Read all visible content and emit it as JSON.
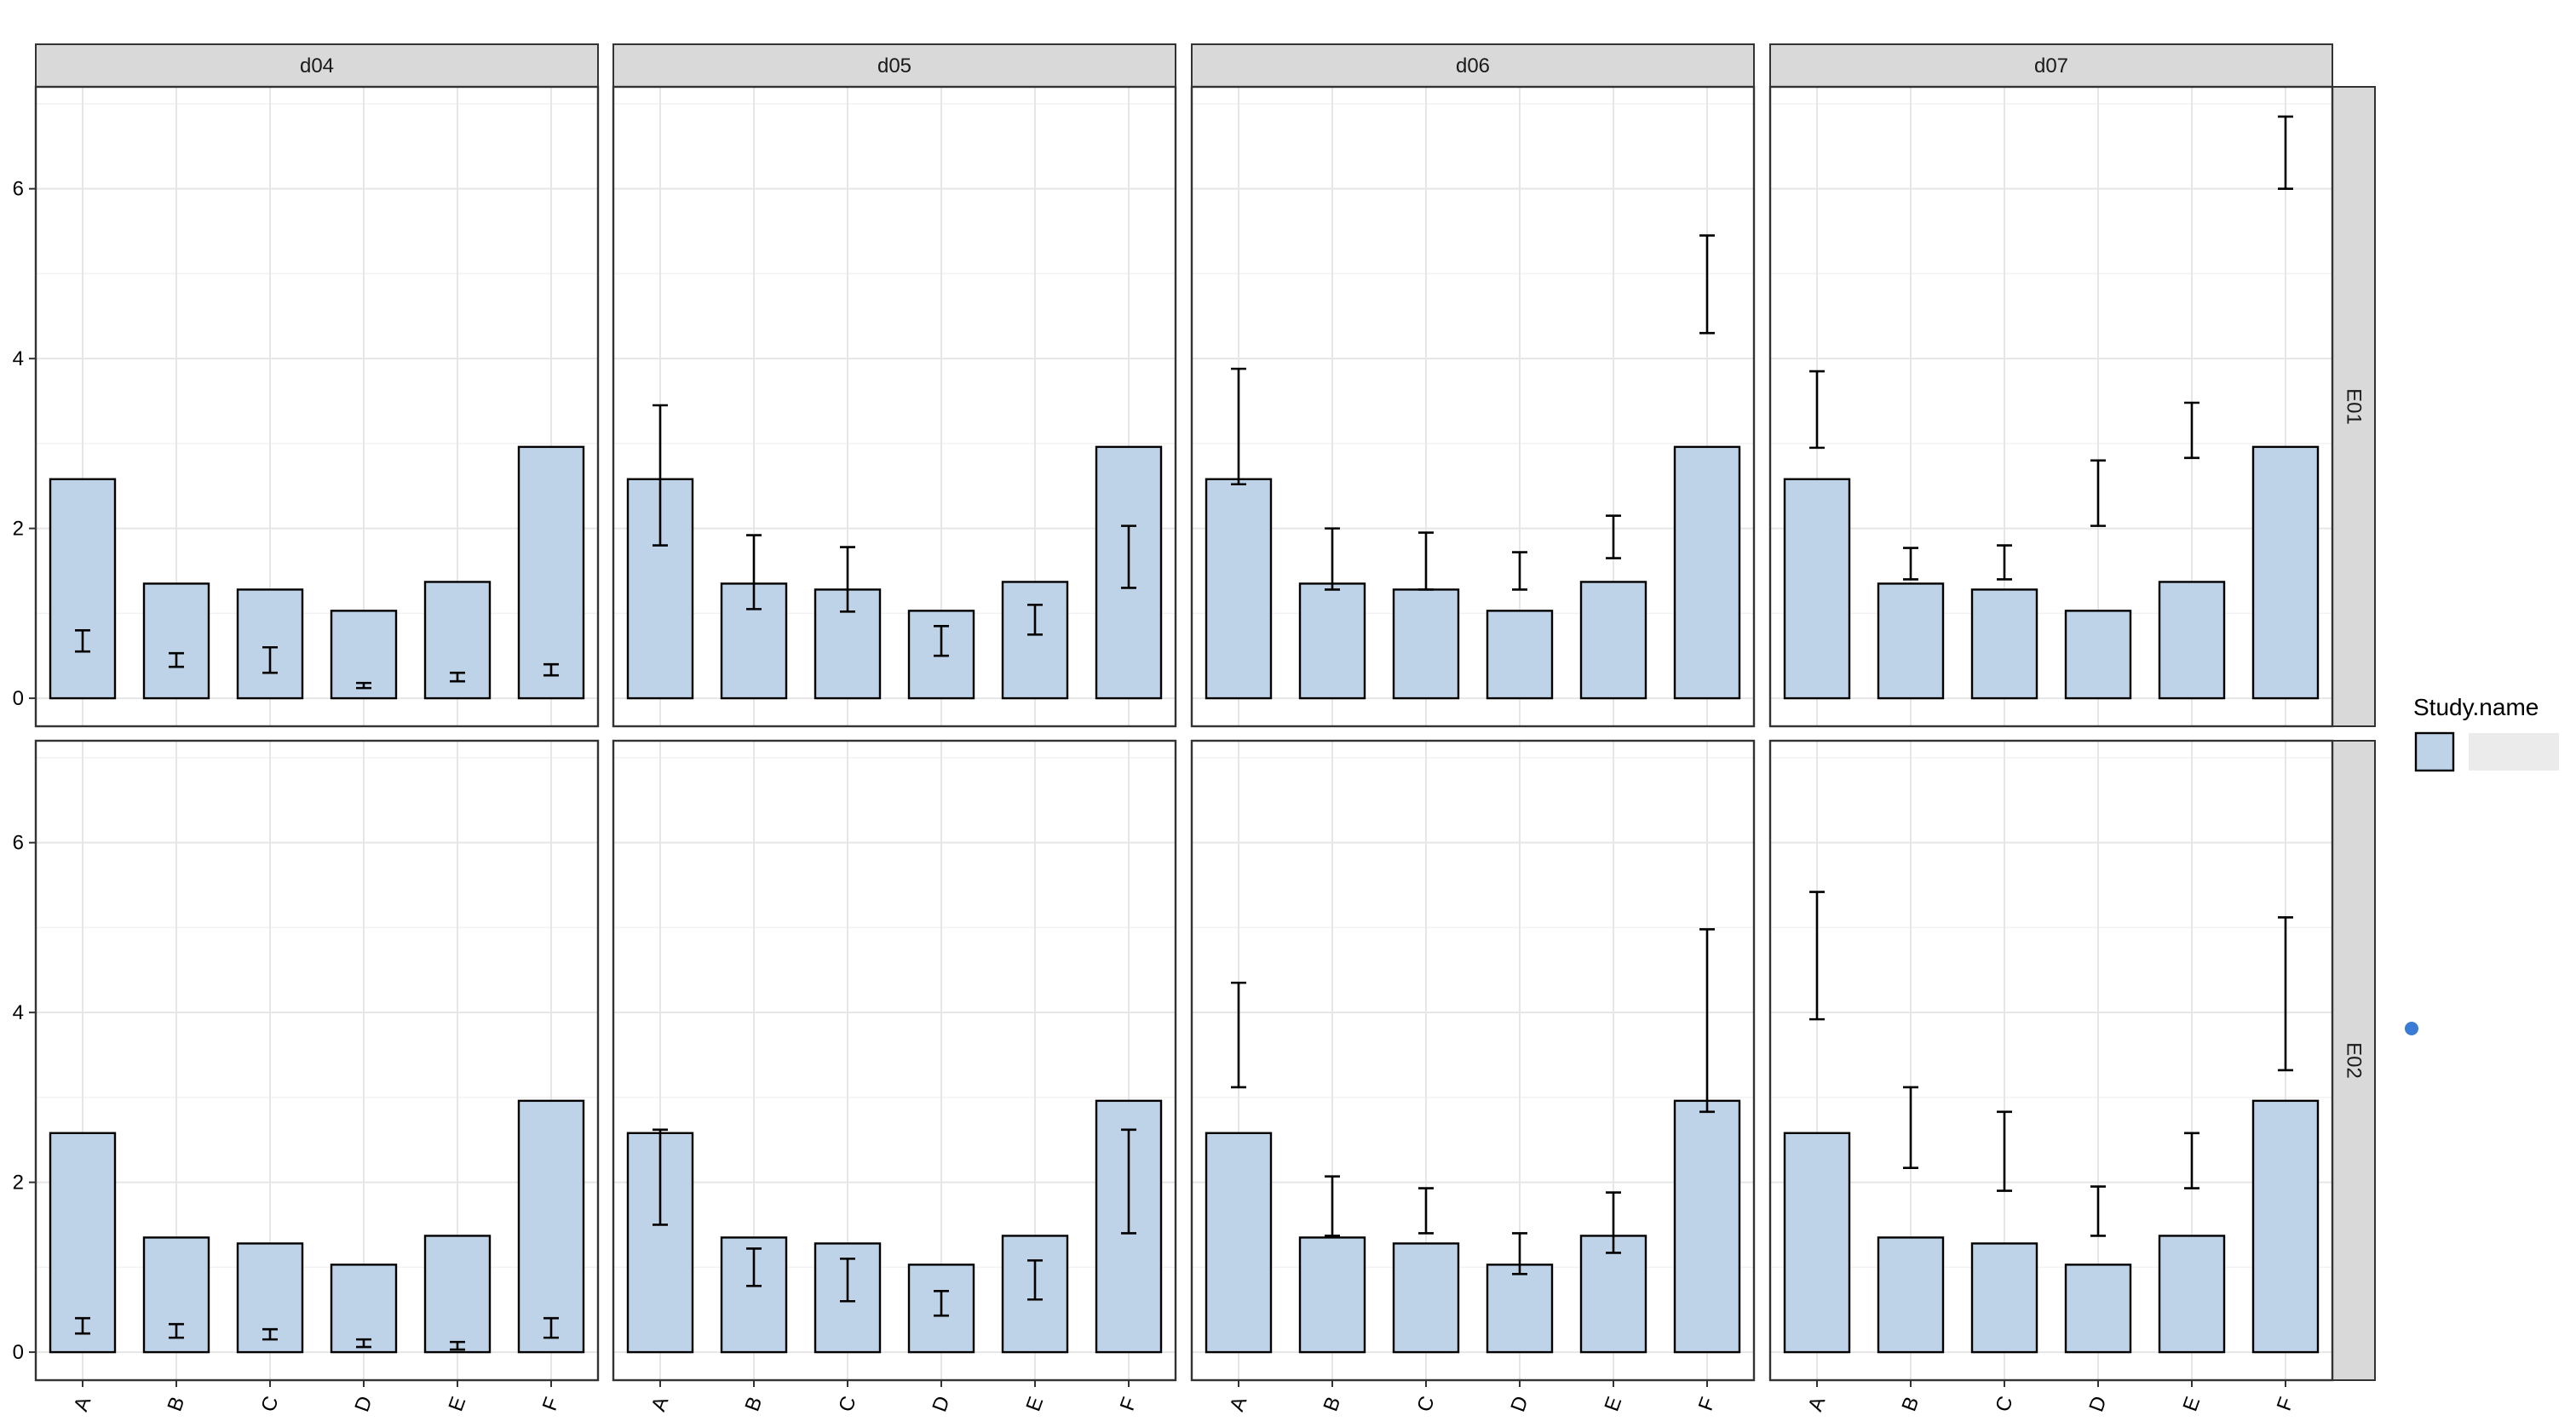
{
  "chart_data": {
    "type": "bar",
    "facet_columns": [
      "d04",
      "d05",
      "d06",
      "d07"
    ],
    "facet_rows": [
      "E01",
      "E02"
    ],
    "categories": [
      "A",
      "B",
      "C",
      "D",
      "E",
      "F"
    ],
    "values": [
      2.58,
      1.35,
      1.28,
      1.03,
      1.37,
      2.96
    ],
    "ylim": [
      -0.33,
      7.2
    ],
    "yticks": [
      0,
      2,
      4,
      6
    ],
    "grid": true,
    "bar_fill": "#bed2e8",
    "bar_stroke": "#000000",
    "strip_fill": "#d9d9d9",
    "point_color": "#3a7bd5",
    "legend": {
      "title": "Study.name",
      "entries": [
        ""
      ],
      "placement": "right"
    },
    "error_bars": {
      "E01": {
        "d04": [
          [
            0.55,
            0.8
          ],
          [
            0.37,
            0.53
          ],
          [
            0.3,
            0.6
          ],
          [
            0.12,
            0.18
          ],
          [
            0.2,
            0.3
          ],
          [
            0.27,
            0.4
          ]
        ],
        "d05": [
          [
            1.8,
            3.45
          ],
          [
            1.05,
            1.92
          ],
          [
            1.02,
            1.78
          ],
          [
            0.5,
            0.85
          ],
          [
            0.75,
            1.1
          ],
          [
            1.3,
            2.03
          ]
        ],
        "d06": [
          [
            2.52,
            3.88
          ],
          [
            1.28,
            2.0
          ],
          [
            1.28,
            1.95
          ],
          [
            1.28,
            1.72
          ],
          [
            1.65,
            2.15
          ],
          [
            4.3,
            5.45
          ]
        ],
        "d07": [
          [
            2.95,
            3.85
          ],
          [
            1.4,
            1.77
          ],
          [
            1.4,
            1.8
          ],
          [
            2.03,
            2.8
          ],
          [
            2.83,
            3.48
          ],
          [
            6.0,
            6.85
          ]
        ]
      },
      "E02": {
        "d04": [
          [
            0.22,
            0.4
          ],
          [
            0.17,
            0.33
          ],
          [
            0.15,
            0.27
          ],
          [
            0.06,
            0.15
          ],
          [
            0.03,
            0.12
          ],
          [
            0.17,
            0.4
          ]
        ],
        "d05": [
          [
            1.5,
            2.62
          ],
          [
            0.78,
            1.22
          ],
          [
            0.6,
            1.1
          ],
          [
            0.43,
            0.72
          ],
          [
            0.62,
            1.08
          ],
          [
            1.4,
            2.62
          ]
        ],
        "d06": [
          [
            3.12,
            4.35
          ],
          [
            1.37,
            2.07
          ],
          [
            1.4,
            1.93
          ],
          [
            0.92,
            1.4
          ],
          [
            1.17,
            1.88
          ],
          [
            2.83,
            4.98
          ]
        ],
        "d07": [
          [
            3.92,
            5.42
          ],
          [
            2.17,
            3.12
          ],
          [
            1.9,
            2.83
          ],
          [
            1.37,
            1.95
          ],
          [
            1.93,
            2.58
          ],
          [
            3.32,
            5.12
          ]
        ]
      }
    }
  }
}
